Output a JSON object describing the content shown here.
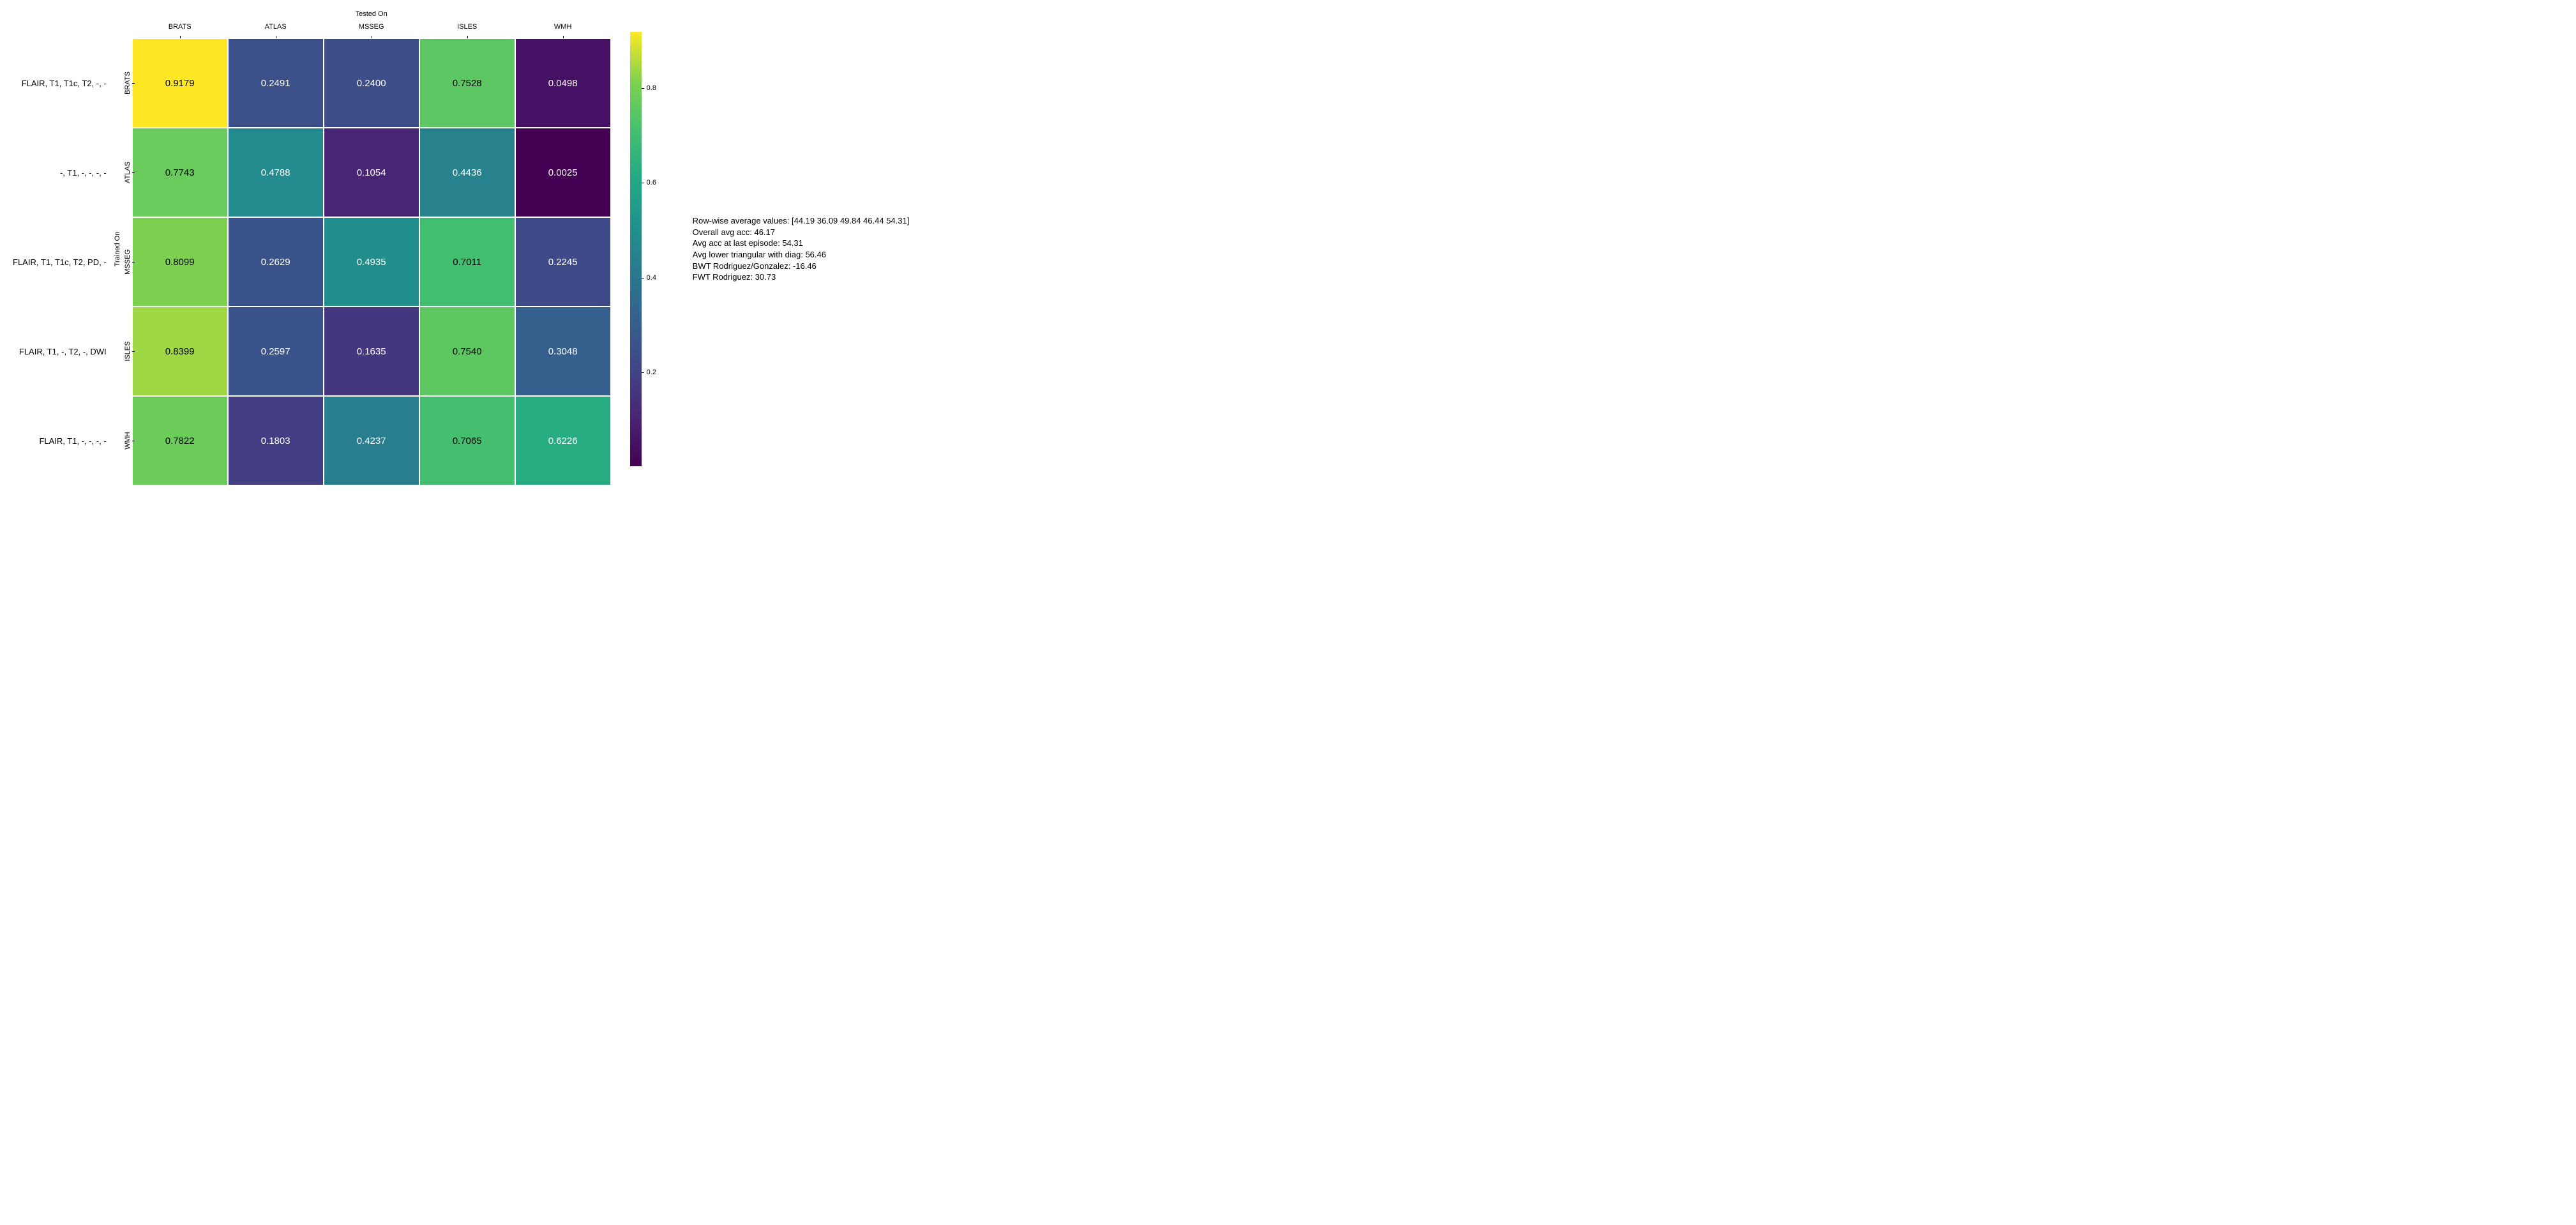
{
  "heatmap": {
    "type": "heatmap",
    "x_axis_title": "Tested On",
    "y_axis_title": "Trained On",
    "col_labels": [
      "BRATS",
      "ATLAS",
      "MSSEG",
      "ISLES",
      "WMH"
    ],
    "row_tick_labels": [
      "BRATS",
      "ATLAS",
      "MSSEG",
      "ISLES",
      "WMH"
    ],
    "row_labels": [
      "FLAIR, T1, T1c, T2, -, -",
      "-, T1, -, -, -, -",
      "FLAIR, T1, T1c, T2, PD, -",
      "FLAIR, T1, -, T2, -, DWI",
      "FLAIR, T1, -, -, -, -"
    ],
    "values": [
      [
        0.9179,
        0.2491,
        0.24,
        0.7528,
        0.0498
      ],
      [
        0.7743,
        0.4788,
        0.1054,
        0.4436,
        0.0025
      ],
      [
        0.8099,
        0.2629,
        0.4935,
        0.7011,
        0.2245
      ],
      [
        0.8399,
        0.2597,
        0.1635,
        0.754,
        0.3048
      ],
      [
        0.7822,
        0.1803,
        0.4237,
        0.7065,
        0.6226
      ]
    ],
    "text_colors": [
      [
        "#000000",
        "#ffffff",
        "#ffffff",
        "#000000",
        "#ffffff"
      ],
      [
        "#000000",
        "#ffffff",
        "#ffffff",
        "#ffffff",
        "#ffffff"
      ],
      [
        "#000000",
        "#ffffff",
        "#ffffff",
        "#000000",
        "#ffffff"
      ],
      [
        "#000000",
        "#ffffff",
        "#ffffff",
        "#000000",
        "#ffffff"
      ],
      [
        "#000000",
        "#ffffff",
        "#ffffff",
        "#000000",
        "#ffffff"
      ]
    ],
    "vmin": 0.0025,
    "vmax": 0.9179,
    "cell_fontsize": 15,
    "label_fontsize": 13,
    "tick_fontsize": 11,
    "colormap_stops": [
      {
        "t": 0.0,
        "color": "#440154"
      },
      {
        "t": 0.11,
        "color": "#482475"
      },
      {
        "t": 0.22,
        "color": "#414487"
      },
      {
        "t": 0.33,
        "color": "#355f8d"
      },
      {
        "t": 0.44,
        "color": "#2a788e"
      },
      {
        "t": 0.55,
        "color": "#21918c"
      },
      {
        "t": 0.66,
        "color": "#22a884"
      },
      {
        "t": 0.77,
        "color": "#44bf70"
      },
      {
        "t": 0.88,
        "color": "#7ad151"
      },
      {
        "t": 1.0,
        "color": "#fde725"
      }
    ],
    "colorbar_ticks": [
      0.2,
      0.4,
      0.6,
      0.8
    ]
  },
  "annotation": {
    "lines": [
      "Row-wise average values: [44.19 36.09 49.84 46.44 54.31]",
      "Overall avg acc: 46.17",
      "Avg acc at last episode: 54.31",
      "Avg lower triangular with diag: 56.46",
      "BWT Rodriguez/Gonzalez: -16.46",
      "FWT Rodriguez: 30.73"
    ],
    "fontsize": 13
  }
}
